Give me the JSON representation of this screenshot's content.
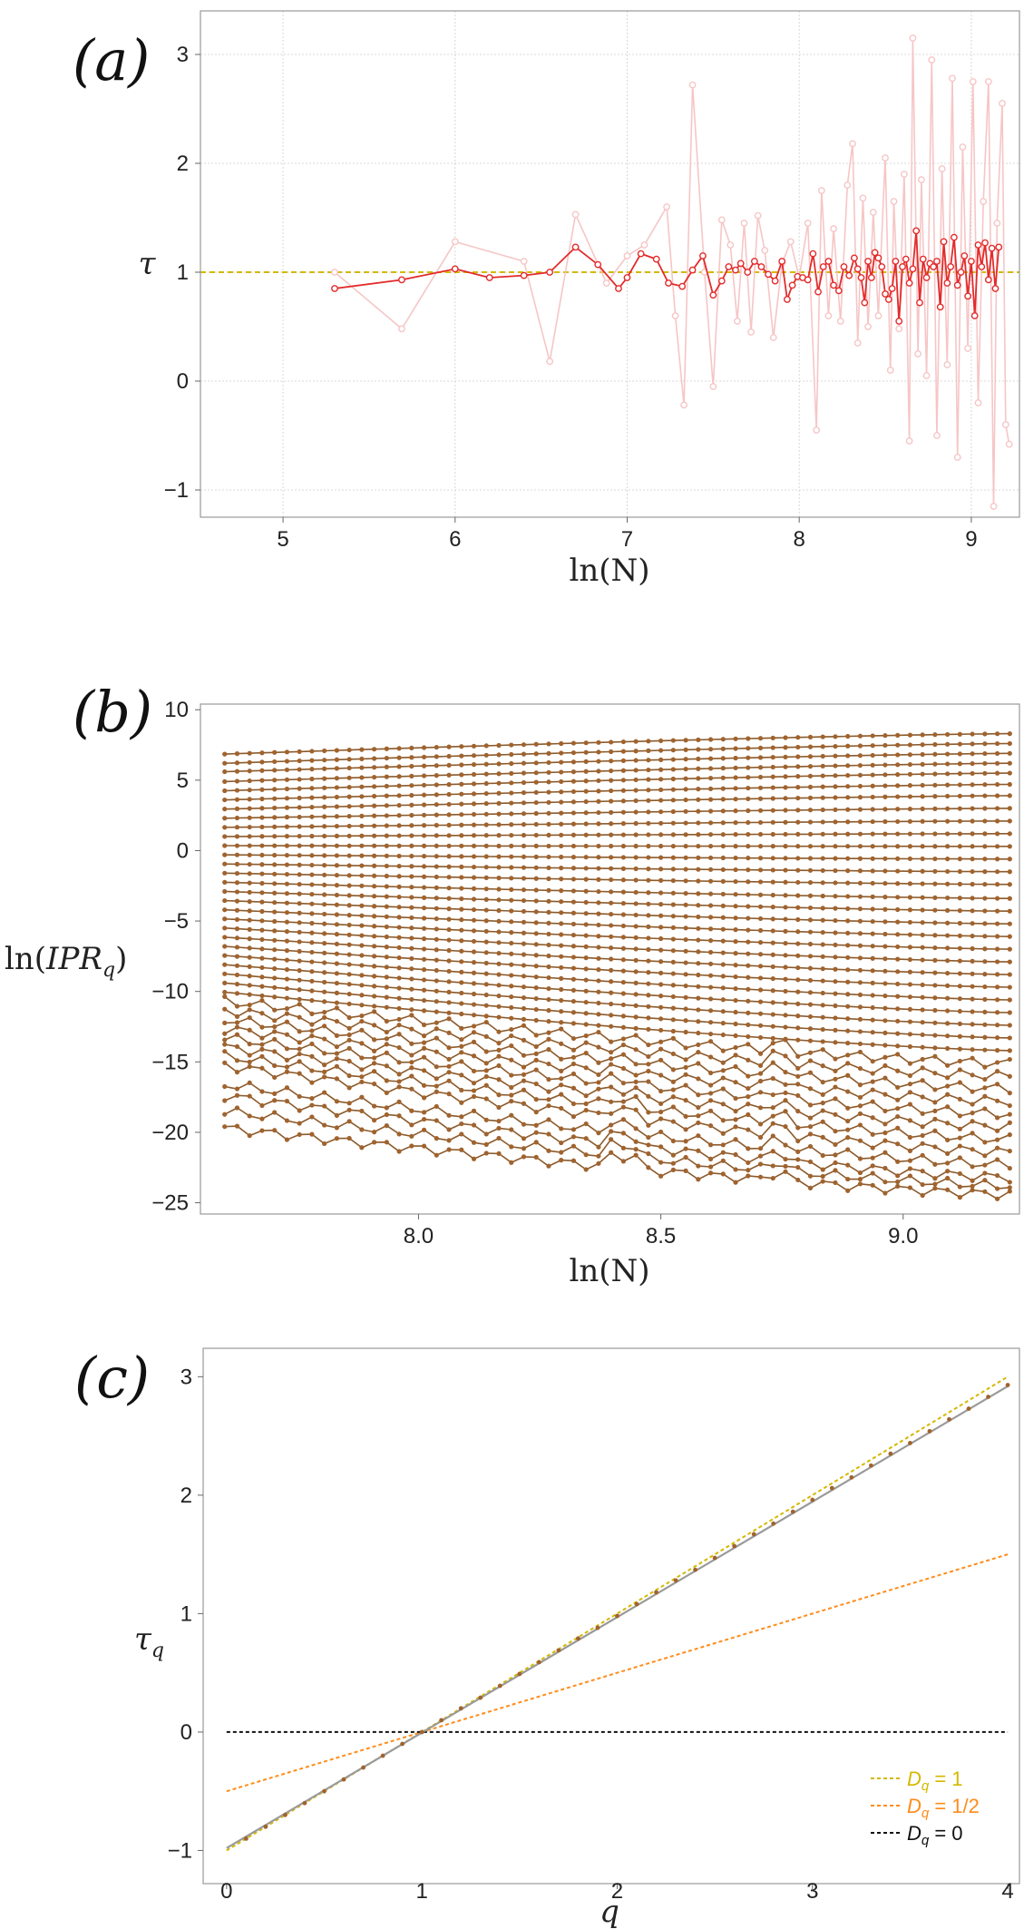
{
  "colors": {
    "tau_main": "#e32b2b",
    "tau_faint": "#f6c6c6",
    "ref_yellow": "#d4b800",
    "ipr_lines": "#8b5a2b",
    "ipr_points": "#a0632e",
    "ref_orange": "#ff8c1a",
    "ref_black": "#111111",
    "fit_gray": "#9a9a9a",
    "grid": "#d8d8d8"
  },
  "chart_data": [
    {
      "panel_label": "(a)",
      "type": "line",
      "xlabel": "ln(N)",
      "ylabel": "τ",
      "xlim": [
        4.52,
        9.28
      ],
      "ylim": [
        -1.25,
        3.4
      ],
      "xticks": [
        5,
        6,
        7,
        8,
        9
      ],
      "yticks": [
        -1,
        0,
        1,
        2,
        3
      ],
      "grid": true,
      "reference_line": {
        "y": 1,
        "style": "dashed",
        "color": "yellow"
      },
      "series": [
        {
          "style": "faint",
          "x": [
            5.3,
            5.69,
            6.0,
            6.4,
            6.55,
            6.7,
            6.88,
            7.0,
            7.1,
            7.23,
            7.28,
            7.33,
            7.38,
            7.45,
            7.5,
            7.55,
            7.6,
            7.64,
            7.68,
            7.72,
            7.76,
            7.8,
            7.85,
            7.9,
            7.95,
            8.0,
            8.05,
            8.1,
            8.13,
            8.17,
            8.2,
            8.24,
            8.28,
            8.31,
            8.34,
            8.37,
            8.4,
            8.43,
            8.46,
            8.5,
            8.53,
            8.55,
            8.58,
            8.61,
            8.64,
            8.66,
            8.69,
            8.71,
            8.74,
            8.77,
            8.8,
            8.83,
            8.86,
            8.89,
            8.92,
            8.95,
            8.98,
            9.01,
            9.04,
            9.07,
            9.1,
            9.13,
            9.15,
            9.18,
            9.2,
            9.22
          ],
          "values": [
            1.0,
            0.48,
            1.28,
            1.1,
            0.18,
            1.53,
            0.9,
            1.15,
            1.25,
            1.6,
            0.6,
            -0.22,
            2.72,
            1.0,
            -0.05,
            1.48,
            1.25,
            0.55,
            1.45,
            0.45,
            1.52,
            1.2,
            0.4,
            1.08,
            1.28,
            0.95,
            1.45,
            -0.45,
            1.75,
            0.6,
            1.4,
            0.55,
            1.8,
            2.18,
            0.35,
            1.68,
            0.5,
            1.55,
            0.6,
            2.05,
            0.1,
            1.65,
            0.48,
            1.9,
            -0.55,
            3.15,
            0.25,
            1.85,
            0.05,
            2.95,
            -0.5,
            1.95,
            0.15,
            2.78,
            -0.7,
            2.15,
            0.3,
            2.75,
            -0.2,
            1.65,
            2.75,
            -1.15,
            1.45,
            2.55,
            -0.4,
            -0.58
          ]
        },
        {
          "style": "main",
          "x": [
            5.3,
            5.69,
            6.0,
            6.2,
            6.4,
            6.55,
            6.7,
            6.83,
            6.95,
            7.0,
            7.08,
            7.17,
            7.24,
            7.32,
            7.38,
            7.44,
            7.5,
            7.55,
            7.59,
            7.63,
            7.66,
            7.7,
            7.74,
            7.78,
            7.82,
            7.86,
            7.9,
            7.93,
            7.96,
            7.99,
            8.02,
            8.05,
            8.08,
            8.11,
            8.14,
            8.17,
            8.2,
            8.23,
            8.26,
            8.29,
            8.32,
            8.34,
            8.36,
            8.38,
            8.4,
            8.42,
            8.44,
            8.46,
            8.48,
            8.5,
            8.52,
            8.54,
            8.56,
            8.58,
            8.6,
            8.62,
            8.64,
            8.66,
            8.68,
            8.7,
            8.72,
            8.74,
            8.76,
            8.78,
            8.8,
            8.82,
            8.84,
            8.86,
            8.88,
            8.9,
            8.92,
            8.94,
            8.96,
            8.98,
            9.0,
            9.02,
            9.04,
            9.06,
            9.08,
            9.1,
            9.12,
            9.14,
            9.16
          ],
          "values": [
            0.85,
            0.93,
            1.03,
            0.95,
            0.97,
            1.0,
            1.23,
            1.07,
            0.85,
            0.95,
            1.17,
            1.12,
            0.9,
            0.87,
            1.02,
            1.15,
            0.79,
            0.92,
            1.05,
            1.02,
            1.08,
            1.0,
            1.1,
            1.05,
            0.98,
            0.92,
            1.1,
            0.75,
            0.88,
            0.96,
            0.95,
            0.93,
            1.17,
            0.82,
            1.05,
            1.1,
            0.88,
            0.83,
            1.05,
            0.97,
            1.13,
            1.03,
            0.95,
            0.72,
            1.1,
            0.95,
            1.18,
            1.13,
            1.05,
            0.8,
            0.75,
            0.85,
            1.1,
            0.55,
            1.05,
            1.12,
            0.9,
            1.03,
            1.38,
            0.72,
            1.12,
            0.95,
            1.08,
            1.05,
            1.1,
            0.68,
            1.28,
            0.9,
            1.05,
            1.32,
            0.88,
            1.0,
            1.15,
            0.78,
            1.1,
            0.6,
            1.25,
            1.05,
            1.27,
            0.93,
            1.22,
            0.85,
            1.23
          ]
        }
      ]
    },
    {
      "panel_label": "(b)",
      "type": "line",
      "xlabel": "ln(IPR_q)",
      "ylabel": "ln(IPR_q)",
      "x_axis_label": "ln(N)",
      "xlim": [
        7.55,
        9.24
      ],
      "ylim": [
        -25.8,
        10.4
      ],
      "xticks": [
        8.0,
        8.5,
        9.0
      ],
      "xtick_labels": [
        "8.0",
        "8.5",
        "9.0"
      ],
      "yticks": [
        -25,
        -20,
        -15,
        -10,
        -5,
        0,
        5,
        10
      ],
      "x_range": [
        7.6,
        9.22
      ],
      "n_points_per_series": 64,
      "n_series": 39,
      "series_first_value": [
        6.85,
        6.2,
        5.6,
        4.9,
        4.25,
        3.6,
        2.95,
        2.3,
        1.65,
        1.0,
        0.35,
        -0.3,
        -0.95,
        -1.6,
        -2.25,
        -2.9,
        -3.55,
        -4.2,
        -4.85,
        -5.5,
        -6.15,
        -6.8,
        -7.45,
        -8.1,
        -8.75,
        -9.4,
        -10.05,
        -10.7,
        -11.35,
        -12.0,
        -12.65,
        -13.3,
        -13.95,
        -14.6,
        -15.25,
        -16.6,
        -17.4,
        -18.5,
        -19.7
      ],
      "series_last_value": [
        8.3,
        7.6,
        6.9,
        6.2,
        5.5,
        4.7,
        3.9,
        3.0,
        2.1,
        1.2,
        0.3,
        -0.6,
        -1.5,
        -2.4,
        -3.4,
        -4.3,
        -5.2,
        -6.1,
        -7.0,
        -7.9,
        -8.8,
        -9.7,
        -10.6,
        -11.5,
        -12.4,
        -13.3,
        -14.2,
        -15.1,
        -16.0,
        -16.9,
        -17.8,
        -18.7,
        -19.6,
        -20.5,
        -21.4,
        -22.3,
        -23.2,
        -23.8,
        -24.4
      ]
    },
    {
      "panel_label": "(c)",
      "type": "line",
      "xlabel": "q",
      "ylabel": "τ_q",
      "xlim": [
        -0.12,
        4.06
      ],
      "ylim": [
        -1.28,
        3.24
      ],
      "xticks": [
        0,
        1,
        2,
        3,
        4
      ],
      "yticks": [
        -1,
        0,
        1,
        2,
        3
      ],
      "legend_position": "bottom-right",
      "legend": [
        {
          "label_main": "D",
          "label_sub": "q",
          "label_rest": " = 1",
          "color_key": "ref_yellow"
        },
        {
          "label_main": "D",
          "label_sub": "q",
          "label_rest": " = 1/2",
          "color_key": "ref_orange"
        },
        {
          "label_main": "D",
          "label_sub": "q",
          "label_rest": " = 0",
          "color_key": "ref_black"
        }
      ],
      "reference_lines": [
        {
          "D": 1,
          "x": [
            0,
            4
          ],
          "y": [
            -1,
            3
          ],
          "color_key": "ref_yellow"
        },
        {
          "D": 0.5,
          "x": [
            0,
            4
          ],
          "y": [
            -0.5,
            1.5
          ],
          "color_key": "ref_orange"
        },
        {
          "D": 0,
          "x": [
            0,
            4
          ],
          "y": [
            0,
            0
          ],
          "color_key": "ref_black"
        }
      ],
      "fit_line": {
        "x": [
          0,
          4
        ],
        "y": [
          -0.98,
          2.92
        ]
      },
      "points": {
        "x": [
          0.1,
          0.2,
          0.3,
          0.4,
          0.5,
          0.6,
          0.7,
          0.8,
          0.9,
          1.0,
          1.1,
          1.2,
          1.3,
          1.4,
          1.5,
          1.6,
          1.7,
          1.8,
          1.9,
          2.0,
          2.1,
          2.2,
          2.3,
          2.4,
          2.5,
          2.6,
          2.7,
          2.8,
          2.9,
          3.0,
          3.1,
          3.2,
          3.3,
          3.4,
          3.5,
          3.6,
          3.7,
          3.8,
          3.9,
          4.0
        ],
        "values": [
          -0.9,
          -0.8,
          -0.7,
          -0.6,
          -0.5,
          -0.4,
          -0.3,
          -0.2,
          -0.1,
          0.0,
          0.1,
          0.2,
          0.29,
          0.39,
          0.49,
          0.59,
          0.69,
          0.79,
          0.88,
          0.98,
          1.08,
          1.18,
          1.28,
          1.37,
          1.47,
          1.57,
          1.67,
          1.76,
          1.86,
          1.96,
          2.06,
          2.15,
          2.25,
          2.35,
          2.44,
          2.54,
          2.64,
          2.73,
          2.83,
          2.93
        ]
      }
    }
  ]
}
